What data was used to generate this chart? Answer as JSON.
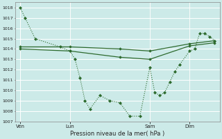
{
  "bg_color": "#cceae8",
  "grid_color": "#ffffff",
  "line_color": "#2d6a2d",
  "xlabel": "Pression niveau de la mer( hPa )",
  "ylim": [
    1007,
    1018.5
  ],
  "ytick_vals": [
    1007,
    1008,
    1009,
    1010,
    1011,
    1012,
    1013,
    1014,
    1015,
    1016,
    1017,
    1018
  ],
  "xtick_labels": [
    "Ven",
    "Lun",
    "Sam",
    "Dim"
  ],
  "xtick_positions": [
    0,
    10,
    26,
    34
  ],
  "vline_positions": [
    10,
    26,
    34
  ],
  "xlim": [
    -1,
    40
  ],
  "series_drop_x": [
    0,
    1,
    3,
    8,
    10,
    11,
    12,
    13,
    14,
    16,
    18,
    20,
    22,
    24,
    26,
    27,
    28,
    29,
    30,
    31,
    32,
    34,
    35,
    36,
    37,
    38,
    39
  ],
  "series_drop_y": [
    1018,
    1017,
    1015,
    1014.2,
    1013.8,
    1013.0,
    1011.2,
    1009.0,
    1008.2,
    1009.5,
    1009.0,
    1008.8,
    1007.5,
    1007.5,
    1012.2,
    1009.8,
    1009.5,
    1009.8,
    1010.8,
    1011.8,
    1012.5,
    1013.8,
    1014.0,
    1015.5,
    1015.5,
    1015.2,
    1014.8
  ],
  "series_flat1_x": [
    0,
    10,
    20,
    26,
    34,
    39
  ],
  "series_flat1_y": [
    1014.2,
    1014.2,
    1014.0,
    1013.8,
    1014.5,
    1014.8
  ],
  "series_flat2_x": [
    0,
    10,
    20,
    26,
    34,
    39
  ],
  "series_flat2_y": [
    1014.0,
    1013.8,
    1013.2,
    1013.0,
    1014.3,
    1014.6
  ],
  "figsize": [
    3.2,
    2.0
  ],
  "dpi": 100
}
